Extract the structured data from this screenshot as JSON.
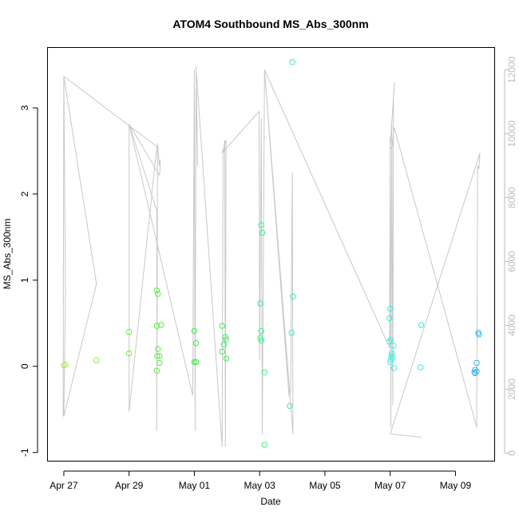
{
  "chart_data": {
    "type": "scatter",
    "title": "ATOM4 Southbound MS_Abs_300nm",
    "xlabel": "Date",
    "ylabel": "MS_Abs_300nm",
    "x_ticks": [
      {
        "x": 0,
        "label": "Apr 27"
      },
      {
        "x": 2,
        "label": "Apr 29"
      },
      {
        "x": 4,
        "label": "May 01"
      },
      {
        "x": 6,
        "label": "May 03"
      },
      {
        "x": 8,
        "label": "May 05"
      },
      {
        "x": 10,
        "label": "May 07"
      },
      {
        "x": 12,
        "label": "May 09"
      }
    ],
    "y_ticks": [
      -1,
      0,
      1,
      2,
      3
    ],
    "y2_ticks": [
      0,
      2000,
      4000,
      6000,
      8000,
      10000,
      12000
    ],
    "xlim": [
      -0.5,
      13.2
    ],
    "ylim": [
      -1.1,
      3.7
    ],
    "y2lim": [
      -250,
      12700
    ],
    "colors": {
      "frame": "#000000",
      "altitude_line": "#c8c8c8",
      "secondary_axis": "#bdbdbd"
    },
    "points": [
      {
        "x": 0.0,
        "y": 0.01,
        "color": "#a6f03c"
      },
      {
        "x": 0.05,
        "y": 0.02,
        "color": "#a6f03c"
      },
      {
        "x": 1.0,
        "y": 0.07,
        "color": "#8ef03c"
      },
      {
        "x": 2.0,
        "y": 0.4,
        "color": "#6cf03c"
      },
      {
        "x": 2.0,
        "y": 0.15,
        "color": "#6cf03c"
      },
      {
        "x": 2.85,
        "y": 0.88,
        "color": "#55f03c"
      },
      {
        "x": 2.88,
        "y": 0.84,
        "color": "#55f03c"
      },
      {
        "x": 2.85,
        "y": 0.47,
        "color": "#55f03c"
      },
      {
        "x": 2.98,
        "y": 0.48,
        "color": "#55f03c"
      },
      {
        "x": 2.88,
        "y": 0.2,
        "color": "#55f03c"
      },
      {
        "x": 2.86,
        "y": 0.12,
        "color": "#55f03c"
      },
      {
        "x": 2.93,
        "y": 0.12,
        "color": "#55f03c"
      },
      {
        "x": 2.93,
        "y": 0.04,
        "color": "#55f03c"
      },
      {
        "x": 2.85,
        "y": -0.05,
        "color": "#55f03c"
      },
      {
        "x": 4.0,
        "y": 0.41,
        "color": "#3cf04a"
      },
      {
        "x": 4.05,
        "y": 0.27,
        "color": "#3cf04a"
      },
      {
        "x": 4.0,
        "y": 0.05,
        "color": "#3cf04a"
      },
      {
        "x": 4.05,
        "y": 0.05,
        "color": "#3cf04a"
      },
      {
        "x": 4.85,
        "y": 0.47,
        "color": "#3cf060"
      },
      {
        "x": 4.95,
        "y": 0.34,
        "color": "#3cf060"
      },
      {
        "x": 4.97,
        "y": 0.31,
        "color": "#3cf060"
      },
      {
        "x": 4.9,
        "y": 0.25,
        "color": "#3cf060"
      },
      {
        "x": 4.85,
        "y": 0.17,
        "color": "#3cf060"
      },
      {
        "x": 4.98,
        "y": 0.09,
        "color": "#3cf060"
      },
      {
        "x": 6.05,
        "y": 1.64,
        "color": "#3cf08a"
      },
      {
        "x": 6.08,
        "y": 1.55,
        "color": "#3cf08a"
      },
      {
        "x": 6.02,
        "y": 0.73,
        "color": "#3cf08a"
      },
      {
        "x": 6.05,
        "y": 0.41,
        "color": "#3cf08a"
      },
      {
        "x": 6.02,
        "y": 0.33,
        "color": "#3cf08a"
      },
      {
        "x": 6.05,
        "y": 0.3,
        "color": "#3cf08a"
      },
      {
        "x": 6.15,
        "y": -0.07,
        "color": "#3cf08a"
      },
      {
        "x": 6.15,
        "y": -0.91,
        "color": "#3cf08a"
      },
      {
        "x": 7.0,
        "y": 3.53,
        "color": "#3cf0a0"
      },
      {
        "x": 7.02,
        "y": 0.81,
        "color": "#3cf0a0"
      },
      {
        "x": 6.98,
        "y": 0.39,
        "color": "#3cf0a0"
      },
      {
        "x": 6.92,
        "y": -0.46,
        "color": "#3cf0a0"
      },
      {
        "x": 10.0,
        "y": 0.67,
        "color": "#3cf0e6"
      },
      {
        "x": 9.98,
        "y": 0.56,
        "color": "#3cf0e6"
      },
      {
        "x": 10.02,
        "y": 0.31,
        "color": "#3cf0e6"
      },
      {
        "x": 9.98,
        "y": 0.29,
        "color": "#3cf0e6"
      },
      {
        "x": 10.1,
        "y": 0.24,
        "color": "#3cf0e6"
      },
      {
        "x": 10.05,
        "y": 0.15,
        "color": "#3cf0e6"
      },
      {
        "x": 10.03,
        "y": 0.12,
        "color": "#3cf0e6"
      },
      {
        "x": 10.07,
        "y": 0.1,
        "color": "#3cf0e6"
      },
      {
        "x": 10.02,
        "y": 0.08,
        "color": "#3cf0e6"
      },
      {
        "x": 10.0,
        "y": 0.05,
        "color": "#3cf0e6"
      },
      {
        "x": 10.12,
        "y": -0.02,
        "color": "#3cf0e6"
      },
      {
        "x": 10.95,
        "y": 0.48,
        "color": "#3ce6f0"
      },
      {
        "x": 10.93,
        "y": -0.01,
        "color": "#3ce6f0"
      },
      {
        "x": 12.7,
        "y": 0.39,
        "color": "#3cb4f0"
      },
      {
        "x": 12.72,
        "y": 0.37,
        "color": "#3cb4f0"
      },
      {
        "x": 12.65,
        "y": 0.04,
        "color": "#3cb4f0"
      },
      {
        "x": 12.6,
        "y": -0.04,
        "color": "#3cb4f0"
      },
      {
        "x": 12.65,
        "y": -0.06,
        "color": "#3cb4f0"
      },
      {
        "x": 12.58,
        "y": -0.07,
        "color": "#3cb4f0"
      },
      {
        "x": 12.6,
        "y": -0.08,
        "color": "#3cb4f0"
      }
    ],
    "altitude_series": [
      [
        -0.02,
        1150
      ],
      [
        0.0,
        11800
      ],
      [
        0.05,
        5000
      ],
      [
        0.0,
        1150
      ],
      [
        1.0,
        5300
      ],
      [
        0.0,
        11800
      ],
      [
        2.85,
        9600
      ],
      [
        2.0,
        1300
      ],
      [
        2.0,
        10300
      ],
      [
        2.85,
        7600
      ],
      [
        2.85,
        700
      ],
      [
        2.87,
        9700
      ],
      [
        2.9,
        9300
      ],
      [
        2.93,
        9000
      ],
      [
        2.95,
        9200
      ],
      [
        2.95,
        8900
      ],
      [
        2.93,
        8700
      ],
      [
        2.0,
        10300
      ],
      [
        3.95,
        1800
      ],
      [
        4.0,
        12000
      ],
      [
        4.02,
        700
      ],
      [
        4.05,
        11400
      ],
      [
        4.1,
        9000
      ],
      [
        4.05,
        12100
      ],
      [
        4.85,
        200
      ],
      [
        4.88,
        9300
      ],
      [
        4.93,
        9800
      ],
      [
        4.95,
        200
      ],
      [
        4.97,
        9800
      ],
      [
        4.85,
        9400
      ],
      [
        5.98,
        10700
      ],
      [
        6.0,
        2900
      ],
      [
        6.05,
        10500
      ],
      [
        6.08,
        600
      ],
      [
        6.15,
        12000
      ],
      [
        6.9,
        1800
      ],
      [
        6.95,
        1900
      ],
      [
        7.0,
        8800
      ],
      [
        7.02,
        600
      ],
      [
        6.15,
        12000
      ],
      [
        9.98,
        3300
      ],
      [
        10.0,
        9900
      ],
      [
        10.02,
        800
      ],
      [
        10.05,
        10300
      ],
      [
        10.08,
        1500
      ],
      [
        10.1,
        11200
      ],
      [
        10.13,
        11600
      ],
      [
        10.0,
        9600
      ],
      [
        10.05,
        9500
      ],
      [
        10.12,
        10200
      ],
      [
        12.6,
        1000
      ],
      [
        12.65,
        800
      ],
      [
        12.68,
        9000
      ],
      [
        12.72,
        8900
      ],
      [
        12.75,
        9400
      ],
      [
        10.0,
        600
      ],
      [
        10.95,
        500
      ]
    ]
  }
}
